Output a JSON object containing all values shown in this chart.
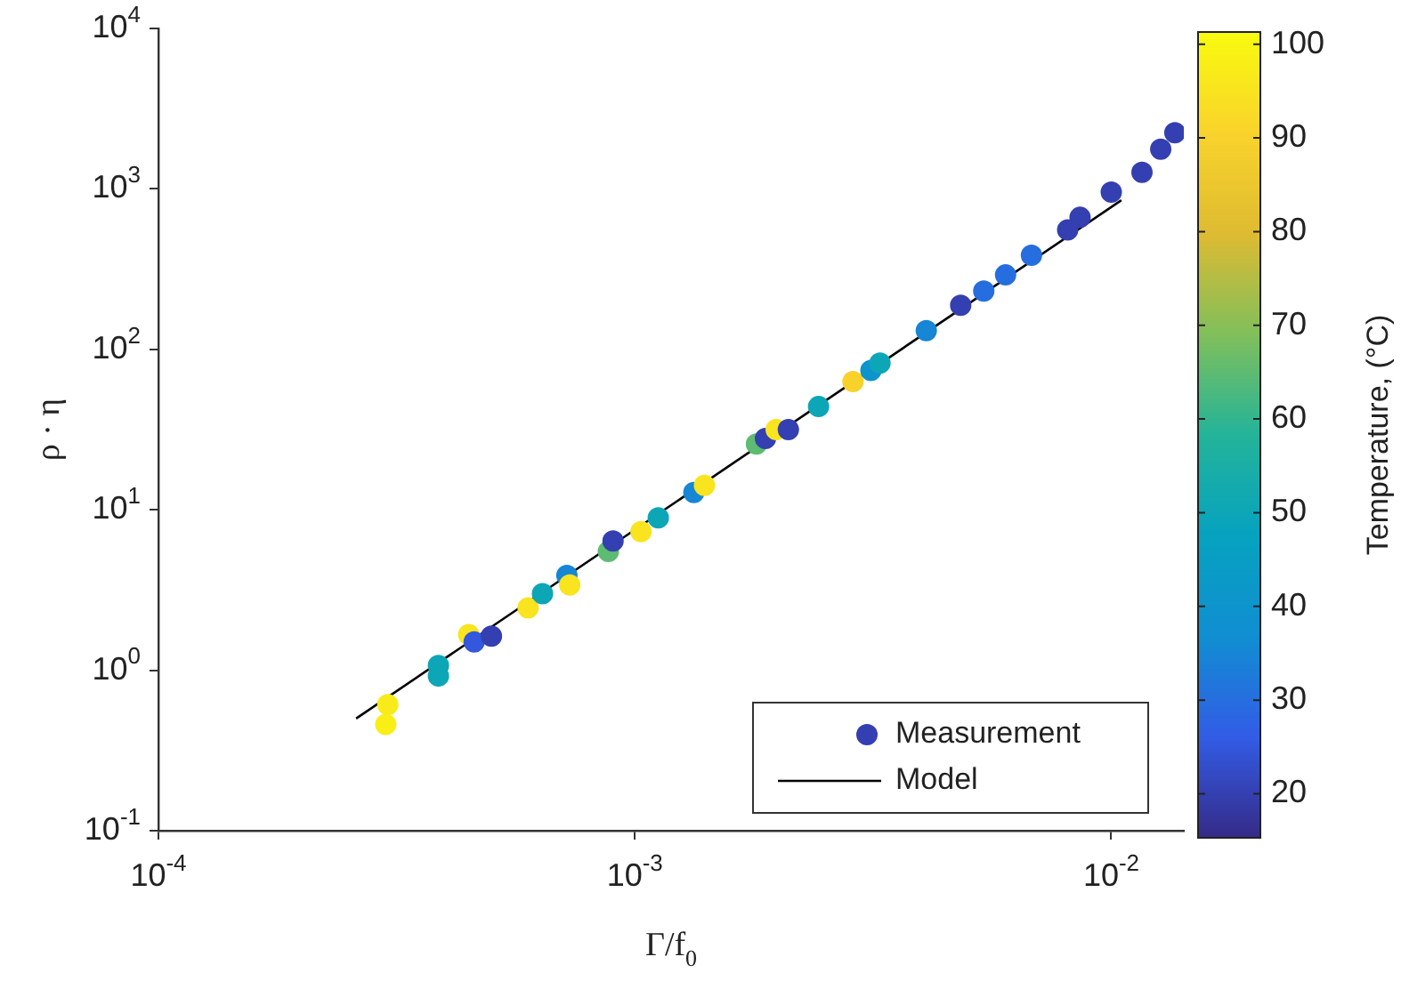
{
  "chart_data": {
    "type": "scatter",
    "xlabel": "Γ/f$_{0}$",
    "ylabel": "ρ · η",
    "clabel": "Temperature, (°C)",
    "log": "xy",
    "legend": "bottom right",
    "xlim": [
      0.0001,
      0.0142
    ],
    "xticks": [
      {
        "value": 0.0001,
        "label": "10$^{-4}$"
      },
      {
        "value": 0.001,
        "label": "10$^{-3}$"
      },
      {
        "value": 0.01,
        "label": "10$^{-2}$"
      }
    ],
    "ylim": [
      0.1,
      10000
    ],
    "yticks": [
      {
        "value": 0.1,
        "label": "10$^{-1}$"
      },
      {
        "value": 1,
        "label": "10$^{0}$"
      },
      {
        "value": 10,
        "label": "10$^{1}$"
      },
      {
        "value": 100,
        "label": "10$^{2}$"
      },
      {
        "value": 1000,
        "label": "10$^{3}$"
      },
      {
        "value": 10000,
        "label": "10$^{4}$"
      }
    ],
    "clim": [
      15.3,
      101.3
    ],
    "cticks": [
      20,
      30,
      40,
      50,
      60,
      70,
      80,
      90,
      100
    ],
    "series": [
      {
        "name": "Measurement",
        "color": "#3440b1",
        "marker": "circle",
        "colors": [
          "#f9eb1a",
          "#f9ef17",
          "#0da6b7",
          "#0da6b7",
          "#f9e41f",
          "#3357dd",
          "#3440b1",
          "#f9e41f",
          "#0da6b7",
          "#1686d5",
          "#f9e41f",
          "#5ebb72",
          "#3440b1",
          "#f9e41f",
          "#0da6b7",
          "#1686d5",
          "#f9e41f",
          "#5ebb72",
          "#3440b1",
          "#f9e41f",
          "#3440b1",
          "#0da6b7",
          "#f8d22b",
          "#0d94cd",
          "#0da6b7",
          "#1686d5",
          "#3440b1",
          "#266edf",
          "#266edf",
          "#266edf",
          "#3440b1",
          "#3440b1",
          "#3440b1",
          "#3440b1",
          "#3440b1",
          "#3440b1"
        ],
        "x": [
          0.000303,
          0.0003,
          0.000387,
          0.000387,
          0.000448,
          0.00046,
          0.0005,
          0.000597,
          0.00064,
          0.00072,
          0.00073,
          0.00088,
          0.0009,
          0.00103,
          0.00112,
          0.00133,
          0.0014,
          0.0018,
          0.00188,
          0.00198,
          0.0021,
          0.00243,
          0.00287,
          0.00313,
          0.00327,
          0.00409,
          0.00483,
          0.0054,
          0.006,
          0.0068,
          0.0081,
          0.0086,
          0.01,
          0.0116,
          0.0127,
          0.0136
        ],
        "values": [
          0.61,
          0.46,
          1.07,
          0.92,
          1.67,
          1.5,
          1.63,
          2.45,
          3,
          3.9,
          3.4,
          5.5,
          6.4,
          7.3,
          8.9,
          12.8,
          14.2,
          25.7,
          27.8,
          31.6,
          31.6,
          44,
          63,
          74,
          82,
          131,
          188,
          231,
          291,
          386,
          555,
          665,
          955,
          1270,
          1770,
          2240
        ],
        "cvalues": [
          97,
          98,
          50,
          50,
          95,
          25,
          20,
          95,
          50,
          35,
          95,
          65,
          20,
          95,
          50,
          35,
          95,
          65,
          20,
          95,
          20,
          50,
          90,
          40,
          50,
          35,
          20,
          30,
          30,
          30,
          20,
          20,
          20,
          20,
          20,
          20
        ]
      },
      {
        "name": "Model",
        "type": "line",
        "color": "#000000",
        "x": [
          0.00026,
          0.0105
        ],
        "values": [
          0.5,
          850
        ]
      }
    ]
  }
}
